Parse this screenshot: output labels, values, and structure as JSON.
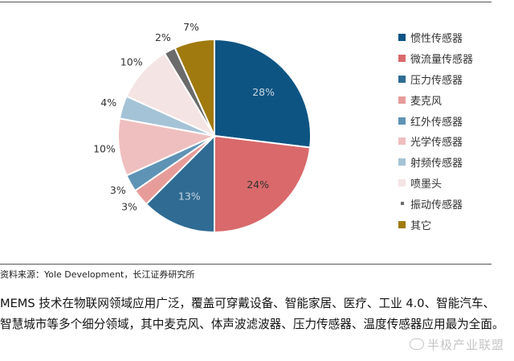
{
  "chart_data": {
    "type": "pie",
    "start": "top, clockwise",
    "slices": [
      {
        "label": "惯性传感器",
        "value": 28,
        "display": "28%",
        "color": "#0e5483"
      },
      {
        "label": "微流量传感器",
        "value": 24,
        "display": "24%",
        "color": "#d9696b"
      },
      {
        "label": "压力传感器",
        "value": 13,
        "display": "13%",
        "color": "#2f6b93"
      },
      {
        "label": "麦克风",
        "value": 3,
        "display": "3%",
        "color": "#e79c9a"
      },
      {
        "label": "红外传感器",
        "value": 3,
        "display": "3%",
        "color": "#5e93b5"
      },
      {
        "label": "光学传感器",
        "value": 10,
        "display": "10%",
        "color": "#efbfbf"
      },
      {
        "label": "射频传感器",
        "value": 4,
        "display": "4%",
        "color": "#a5c3d6"
      },
      {
        "label": "喷墨头",
        "value": 10,
        "display": "10%",
        "color": "#f5e4e4"
      },
      {
        "label": "振动传感器",
        "value": 2,
        "display": "2%",
        "color": "#6b6b6b"
      },
      {
        "label": "其它",
        "value": 7,
        "display": "7%",
        "color": "#a07a0e"
      }
    ],
    "legend_position": "right"
  },
  "source": "资料来源：Yole Development，长江证券研究所",
  "paragraph": "MEMS 技术在物联网领域应用广泛，覆盖可穿戴设备、智能家居、医疗、工业 4.0、智能汽车、智慧城市等多个细分领域，其中麦克风、体声波滤波器、压力传感器、温度传感器应用最为全面。",
  "watermark": "半极产业联盟"
}
